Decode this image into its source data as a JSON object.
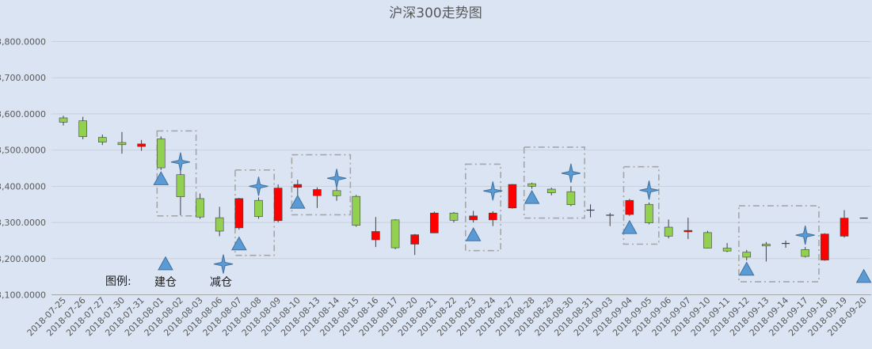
{
  "chart_data": {
    "type": "candlestick",
    "title": "沪深300走势图",
    "xlabel": "",
    "ylabel": "",
    "ylim": [
      3100,
      3850
    ],
    "y_ticks": [
      "3,100.0000",
      "3,200.0000",
      "3,300.0000",
      "3,400.0000",
      "3,500.0000",
      "3,600.0000",
      "3,700.0000",
      "3,800.0000"
    ],
    "y_tick_values": [
      3100,
      3200,
      3300,
      3400,
      3500,
      3600,
      3700,
      3800
    ],
    "grid": true,
    "up_color": "#ff0000",
    "down_color": "#92d050",
    "marker_color": "#5b9bd5",
    "categories": [
      "2018-07-25",
      "2018-07-26",
      "2018-07-27",
      "2018-07-30",
      "2018-07-31",
      "2018-08-01",
      "2018-08-02",
      "2018-08-03",
      "2018-08-06",
      "2018-08-07",
      "2018-08-08",
      "2018-08-09",
      "2018-08-10",
      "2018-08-13",
      "2018-08-14",
      "2018-08-15",
      "2018-08-16",
      "2018-08-17",
      "2018-08-20",
      "2018-08-21",
      "2018-08-22",
      "2018-08-23",
      "2018-08-24",
      "2018-08-27",
      "2018-08-28",
      "2018-08-29",
      "2018-08-30",
      "2018-08-31",
      "2018-09-03",
      "2018-09-04",
      "2018-09-05",
      "2018-09-06",
      "2018-09-07",
      "2018-09-10",
      "2018-09-11",
      "2018-09-12",
      "2018-09-13",
      "2018-09-14",
      "2018-09-17",
      "2018-09-18",
      "2018-09-19",
      "2018-09-20"
    ],
    "candles": [
      {
        "open": 3589,
        "high": 3595,
        "low": 3568,
        "close": 3577
      },
      {
        "open": 3581,
        "high": 3592,
        "low": 3530,
        "close": 3537
      },
      {
        "open": 3535,
        "high": 3543,
        "low": 3514,
        "close": 3522
      },
      {
        "open": 3521,
        "high": 3550,
        "low": 3490,
        "close": 3515
      },
      {
        "open": 3510,
        "high": 3528,
        "low": 3498,
        "close": 3517
      },
      {
        "open": 3531,
        "high": 3538,
        "low": 3445,
        "close": 3451
      },
      {
        "open": 3432,
        "high": 3445,
        "low": 3320,
        "close": 3371
      },
      {
        "open": 3366,
        "high": 3380,
        "low": 3310,
        "close": 3315
      },
      {
        "open": 3313,
        "high": 3343,
        "low": 3262,
        "close": 3276
      },
      {
        "open": 3285,
        "high": 3368,
        "low": 3280,
        "close": 3366
      },
      {
        "open": 3361,
        "high": 3369,
        "low": 3310,
        "close": 3316
      },
      {
        "open": 3305,
        "high": 3405,
        "low": 3300,
        "close": 3395
      },
      {
        "open": 3397,
        "high": 3418,
        "low": 3368,
        "close": 3405
      },
      {
        "open": 3374,
        "high": 3397,
        "low": 3340,
        "close": 3391
      },
      {
        "open": 3388,
        "high": 3396,
        "low": 3360,
        "close": 3374
      },
      {
        "open": 3372,
        "high": 3376,
        "low": 3288,
        "close": 3292
      },
      {
        "open": 3252,
        "high": 3315,
        "low": 3232,
        "close": 3275
      },
      {
        "open": 3307,
        "high": 3309,
        "low": 3226,
        "close": 3230
      },
      {
        "open": 3240,
        "high": 3268,
        "low": 3210,
        "close": 3266
      },
      {
        "open": 3271,
        "high": 3330,
        "low": 3270,
        "close": 3326
      },
      {
        "open": 3326,
        "high": 3329,
        "low": 3300,
        "close": 3306
      },
      {
        "open": 3307,
        "high": 3332,
        "low": 3300,
        "close": 3318
      },
      {
        "open": 3307,
        "high": 3331,
        "low": 3290,
        "close": 3326
      },
      {
        "open": 3340,
        "high": 3406,
        "low": 3338,
        "close": 3405
      },
      {
        "open": 3407,
        "high": 3410,
        "low": 3393,
        "close": 3400
      },
      {
        "open": 3392,
        "high": 3396,
        "low": 3375,
        "close": 3382
      },
      {
        "open": 3385,
        "high": 3400,
        "low": 3345,
        "close": 3349
      },
      {
        "open": 3334,
        "high": 3350,
        "low": 3314,
        "close": 3334
      },
      {
        "open": 3320,
        "high": 3326,
        "low": 3290,
        "close": 3320
      },
      {
        "open": 3322,
        "high": 3365,
        "low": 3318,
        "close": 3361
      },
      {
        "open": 3350,
        "high": 3355,
        "low": 3295,
        "close": 3299
      },
      {
        "open": 3287,
        "high": 3308,
        "low": 3256,
        "close": 3262
      },
      {
        "open": 3274,
        "high": 3313,
        "low": 3254,
        "close": 3278
      },
      {
        "open": 3272,
        "high": 3277,
        "low": 3228,
        "close": 3229
      },
      {
        "open": 3229,
        "high": 3243,
        "low": 3218,
        "close": 3221
      },
      {
        "open": 3218,
        "high": 3224,
        "low": 3195,
        "close": 3204
      },
      {
        "open": 3240,
        "high": 3246,
        "low": 3192,
        "close": 3235
      },
      {
        "open": 3241,
        "high": 3250,
        "low": 3230,
        "close": 3242
      },
      {
        "open": 3225,
        "high": 3232,
        "low": 3203,
        "close": 3206
      },
      {
        "open": 3196,
        "high": 3270,
        "low": 3194,
        "close": 3268
      },
      {
        "open": 3262,
        "high": 3334,
        "low": 3258,
        "close": 3312
      },
      {
        "open": 3312,
        "high": 3312,
        "low": 3312,
        "close": 3312
      }
    ],
    "build_signals": [
      {
        "index": 5,
        "value": 3420
      },
      {
        "index": 9,
        "value": 3240
      },
      {
        "index": 12,
        "value": 3355
      },
      {
        "index": 21,
        "value": 3265
      },
      {
        "index": 24,
        "value": 3368
      },
      {
        "index": 29,
        "value": 3285
      },
      {
        "index": 35,
        "value": 3170
      },
      {
        "index": 41,
        "value": 3150
      }
    ],
    "reduce_signals": [
      {
        "index": 6,
        "value": 3467
      },
      {
        "index": 10,
        "value": 3400
      },
      {
        "index": 14,
        "value": 3422
      },
      {
        "index": 22,
        "value": 3387
      },
      {
        "index": 26,
        "value": 3436
      },
      {
        "index": 30,
        "value": 3389
      },
      {
        "index": 38,
        "value": 3265
      }
    ],
    "boxes": [
      {
        "from": 4.8,
        "to": 6.8,
        "low": 3318,
        "high": 3553
      },
      {
        "from": 8.8,
        "to": 10.8,
        "low": 3209,
        "high": 3445
      },
      {
        "from": 11.7,
        "to": 14.7,
        "low": 3321,
        "high": 3487
      },
      {
        "from": 20.6,
        "to": 22.4,
        "low": 3222,
        "high": 3461
      },
      {
        "from": 23.6,
        "to": 26.7,
        "low": 3312,
        "high": 3508
      },
      {
        "from": 28.7,
        "to": 30.5,
        "low": 3240,
        "high": 3454
      },
      {
        "from": 34.6,
        "to": 38.7,
        "low": 3136,
        "high": 3346
      }
    ],
    "legend": {
      "label": "图例:",
      "build": "建仓",
      "reduce": "减仓",
      "build_marker_value": 3185,
      "reduce_marker_value": 3185
    }
  }
}
